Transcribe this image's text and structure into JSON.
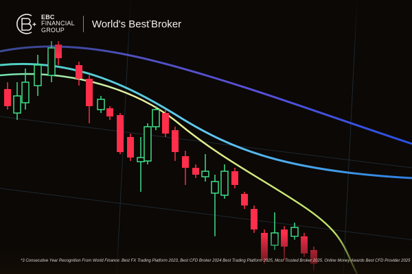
{
  "brand": {
    "line1": "EBC",
    "line2": "FINANCIAL",
    "line3": "GROUP"
  },
  "tagline": {
    "text_before": "World's Best",
    "mark": "*",
    "text_after": "Broker"
  },
  "footnote": "*3 Consecutive Year Recognition From World Finance: Best FX Trading Platform 2023, Best CFD Broker 2024 Best Trading Platform 2025, Most Trusted Broker 2025.  Online Money Awards Best CFD Provider 2025",
  "colors": {
    "bullish": "#3fe08a",
    "bearish": "#ff2e4a",
    "background": "#0b0805"
  }
}
